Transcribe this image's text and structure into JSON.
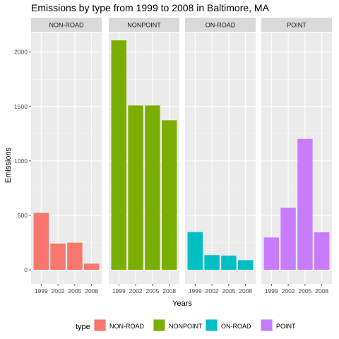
{
  "chart_data": {
    "type": "bar",
    "title": "Emissions by type from 1999 to 2008 in Baltimore, MA",
    "xlabel": "Years",
    "ylabel": "Emissions",
    "ylim": [
      -130,
      2180
    ],
    "yticks": [
      0,
      500,
      1000,
      1500,
      2000
    ],
    "categories": [
      "1999",
      "2002",
      "2005",
      "2008"
    ],
    "grid": true,
    "legend": {
      "title": "type",
      "position": "bottom"
    },
    "panels": [
      {
        "name": "NON-ROAD",
        "color": "#F8766D",
        "values": [
          522.9,
          240.8,
          248.9,
          55.8
        ]
      },
      {
        "name": "NONPOINT",
        "color": "#7CAE00",
        "values": [
          2107.6,
          1509.5,
          1509.5,
          1373.2
        ]
      },
      {
        "name": "ON-ROAD",
        "color": "#00BFC4",
        "values": [
          346.8,
          134.3,
          130.4,
          88.3
        ]
      },
      {
        "name": "POINT",
        "color": "#C77CFF",
        "values": [
          296.8,
          569.3,
          1202.5,
          344.98
        ]
      }
    ]
  }
}
